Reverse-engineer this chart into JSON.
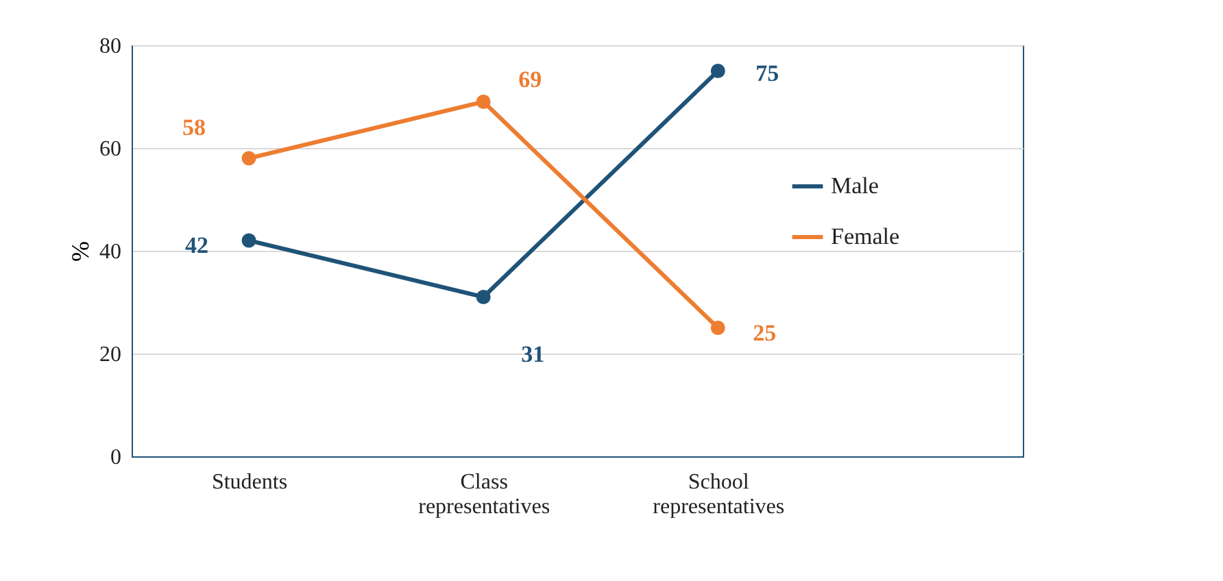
{
  "chart_data": {
    "type": "line",
    "ylabel": "%",
    "categories": [
      "Students",
      "Class representatives",
      "School representatives"
    ],
    "series": [
      {
        "name": "Male",
        "color": "#1f5378",
        "values": [
          42,
          31,
          75
        ]
      },
      {
        "name": "Female",
        "color": "#ed7d31",
        "values": [
          58,
          69,
          25
        ]
      }
    ],
    "ylim": [
      0,
      80
    ],
    "yticks": [
      0,
      20,
      40,
      60,
      80
    ],
    "grid": "y",
    "legend": "right",
    "marker": "circle",
    "line_style": "solid",
    "data_labels": true
  }
}
